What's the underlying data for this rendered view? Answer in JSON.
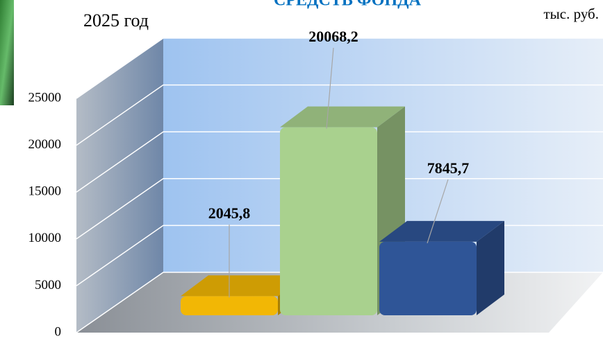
{
  "chart_data": {
    "type": "bar3d",
    "title": "СРЕДСТВ ФОНДА",
    "subtitle": "2025 год",
    "unit_label": "тыс. руб.",
    "categories": [
      null,
      null,
      null
    ],
    "values": [
      2045.8,
      20068.2,
      7845.7
    ],
    "value_labels": [
      "2045,8",
      "20068,2",
      "7845,7"
    ],
    "colors": [
      "#f2b705",
      "#a9d18e",
      "#2f5597"
    ],
    "ylim": [
      0,
      25000
    ],
    "yticks": [
      0,
      5000,
      10000,
      15000,
      20000,
      25000
    ],
    "grid": true
  }
}
